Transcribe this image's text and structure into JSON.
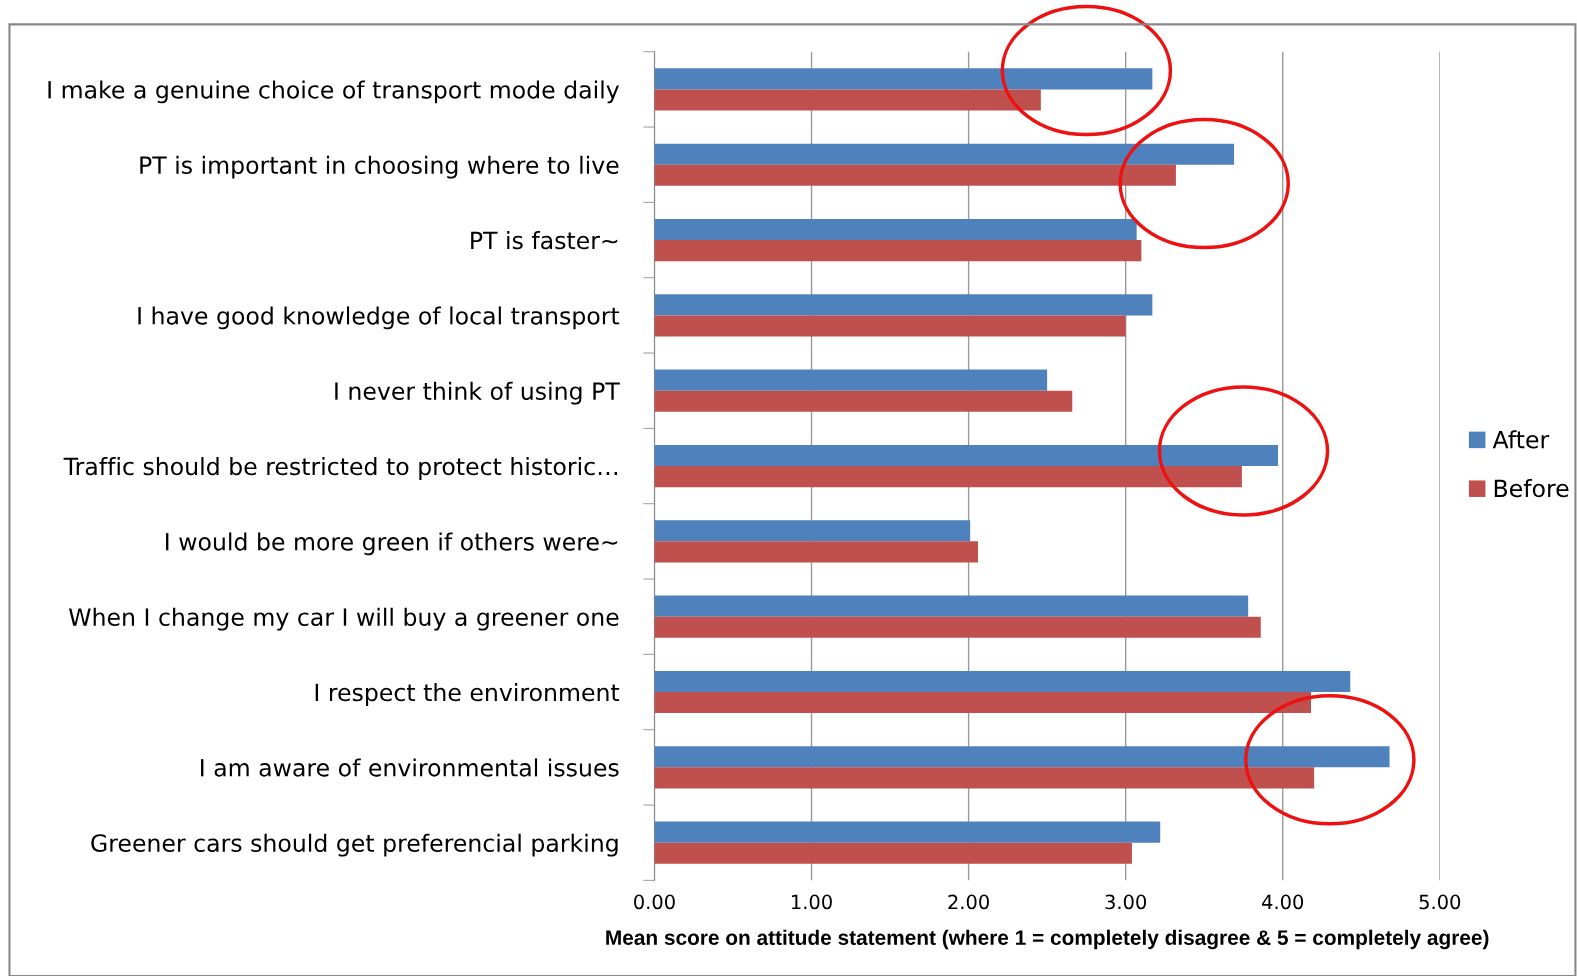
{
  "chart_data": {
    "type": "bar",
    "orientation": "horizontal",
    "xlabel": "Mean score on attitude statement (where 1 = completely disagree & 5 = completely agree)",
    "categories": [
      "I make a genuine choice of transport mode daily",
      "PT is important in choosing where to live",
      "PT is faster~",
      "I have good knowledge of local transport",
      "I never think of using PT",
      "Traffic should be restricted to protect historic…",
      "I would be more green if others were~",
      "When I change my car I will buy a greener one",
      "I respect the environment",
      "I am aware of environmental issues",
      "Greener cars should get preferencial parking"
    ],
    "series": [
      {
        "name": "After",
        "color": "#4f81bd",
        "values": [
          3.17,
          3.69,
          3.07,
          3.17,
          2.5,
          3.97,
          2.01,
          3.78,
          4.43,
          4.68,
          3.22
        ]
      },
      {
        "name": "Before",
        "color": "#c0504d",
        "values": [
          2.46,
          3.32,
          3.1,
          3.0,
          2.66,
          3.74,
          2.06,
          3.86,
          4.18,
          4.2,
          3.04
        ]
      }
    ],
    "xlim": [
      0,
      5
    ],
    "xticks": [
      {
        "value": 0,
        "label": "0.00"
      },
      {
        "value": 1,
        "label": "1.00"
      },
      {
        "value": 2,
        "label": "2.00"
      },
      {
        "value": 3,
        "label": "3.00"
      },
      {
        "value": 4,
        "label": "4.00"
      },
      {
        "value": 5,
        "label": "5.00"
      }
    ],
    "grid": "x",
    "legend": "right"
  }
}
